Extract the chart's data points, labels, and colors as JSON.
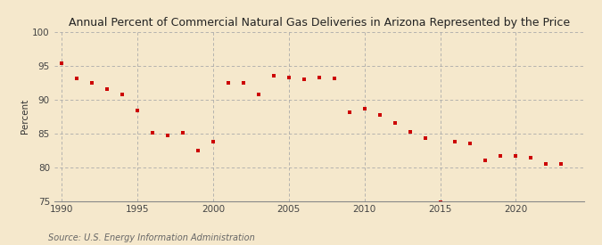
{
  "title": "Annual Percent of Commercial Natural Gas Deliveries in Arizona Represented by the Price",
  "ylabel": "Percent",
  "source": "Source: U.S. Energy Information Administration",
  "background_color": "#f5e8cc",
  "plot_background": "#f5e8cc",
  "marker_color": "#cc0000",
  "xlim": [
    1989.5,
    2024.5
  ],
  "ylim": [
    75,
    100
  ],
  "yticks": [
    75,
    80,
    85,
    90,
    95,
    100
  ],
  "xticks": [
    1990,
    1995,
    2000,
    2005,
    2010,
    2015,
    2020
  ],
  "years": [
    1990,
    1991,
    1992,
    1993,
    1994,
    1995,
    1996,
    1997,
    1998,
    1999,
    2000,
    2001,
    2002,
    2003,
    2004,
    2005,
    2006,
    2007,
    2008,
    2009,
    2010,
    2011,
    2012,
    2013,
    2014,
    2015,
    2016,
    2017,
    2018,
    2019,
    2020,
    2021,
    2022,
    2023
  ],
  "values": [
    95.3,
    93.1,
    92.4,
    91.5,
    90.8,
    88.4,
    85.1,
    84.7,
    85.1,
    82.5,
    83.7,
    92.4,
    92.5,
    90.7,
    93.5,
    93.3,
    93.0,
    93.2,
    93.1,
    88.1,
    88.6,
    87.7,
    86.5,
    85.2,
    84.3,
    74.8,
    83.7,
    83.5,
    81.0,
    81.7,
    81.6,
    81.4,
    80.5,
    80.5
  ]
}
